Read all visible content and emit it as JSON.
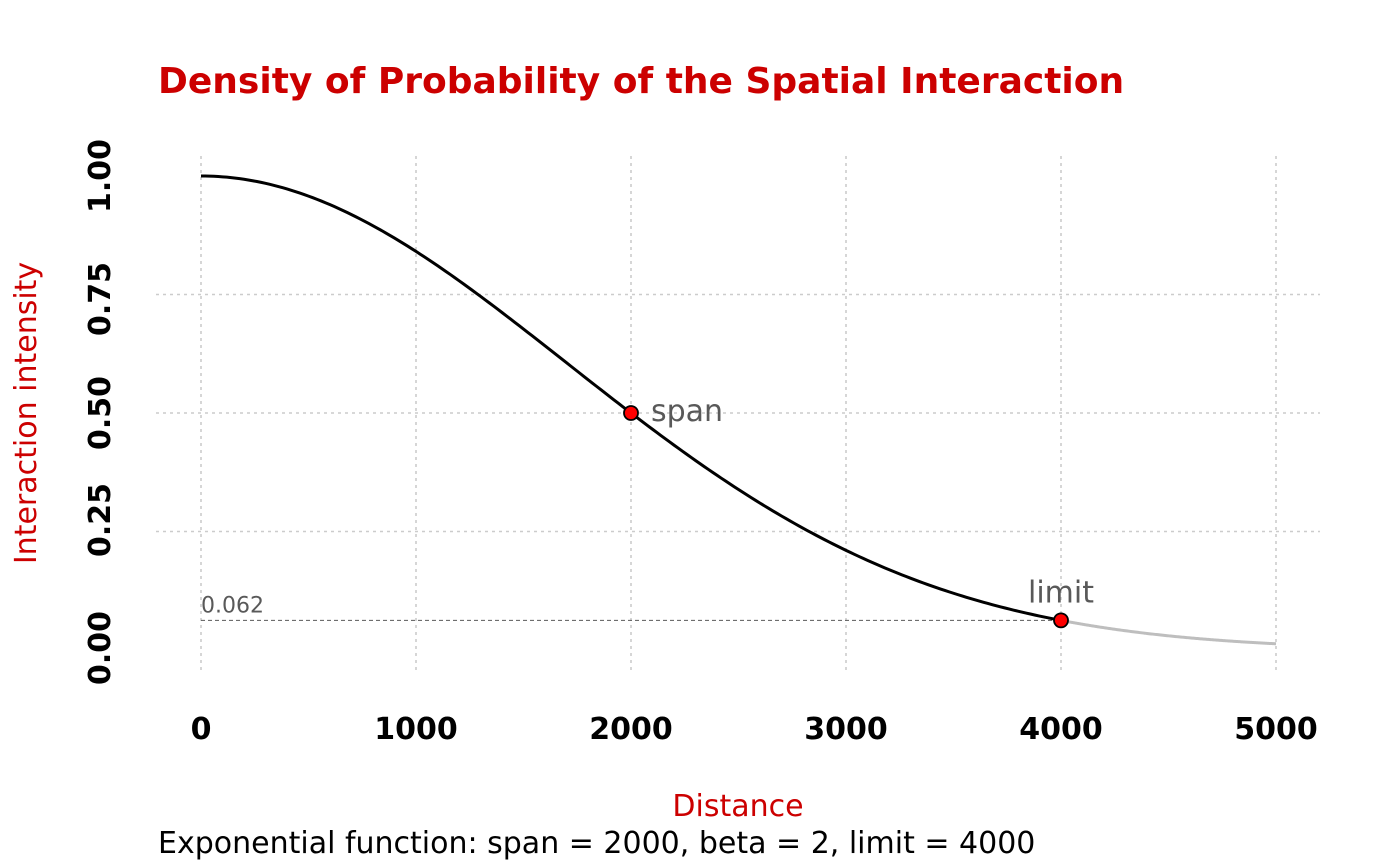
{
  "colors": {
    "title": "#cc0000",
    "axis_title": "#cc0000",
    "curve": "#000000",
    "curve_beyond_limit": "#bebebe",
    "point_fill": "#ff0000",
    "point_stroke": "#000000",
    "grid": "#cccccc",
    "annotation": "#595959",
    "reference_line": "#595959"
  },
  "chart_data": {
    "type": "line",
    "title": "Density of Probability of the Spatial Interaction",
    "xlabel": "Distance",
    "ylabel": "Interaction intensity",
    "caption": "Exponential function: span = 2000, beta = 2, limit = 4000",
    "xlim": [
      0,
      5000
    ],
    "ylim": [
      0,
      1
    ],
    "x_ticks": [
      0,
      1000,
      2000,
      3000,
      4000,
      5000
    ],
    "x_tick_labels": [
      "0",
      "1000",
      "2000",
      "3000",
      "4000",
      "5000"
    ],
    "y_ticks": [
      0,
      0.25,
      0.5,
      0.75,
      1
    ],
    "y_tick_labels": [
      "0.00",
      "0.25",
      "0.50",
      "0.75",
      "1.00"
    ],
    "grid": true,
    "function": {
      "type": "exponential",
      "span": 2000,
      "beta": 2,
      "limit": 4000
    },
    "series": [
      {
        "x": [
          0,
          250,
          500,
          750,
          1000,
          1250,
          1500,
          1750,
          2000,
          2250,
          2500,
          2750,
          3000,
          3250,
          3500,
          3750,
          4000
        ],
        "y": [
          1,
          0.989,
          0.958,
          0.907,
          0.841,
          0.763,
          0.677,
          0.588,
          0.5,
          0.416,
          0.34,
          0.27,
          0.21,
          0.161,
          0.12,
          0.088,
          0.0625
        ]
      },
      {
        "x": [
          4000,
          4250,
          4500,
          4750,
          5000
        ],
        "y": [
          0.0625,
          0.043,
          0.029,
          0.02,
          0.013
        ]
      }
    ],
    "points": [
      {
        "x": 2000,
        "y": 0.5,
        "label": "span"
      },
      {
        "x": 4000,
        "y": 0.0625,
        "label": "limit"
      }
    ],
    "reference_line": {
      "y": 0.0625,
      "label": "0.062"
    }
  }
}
